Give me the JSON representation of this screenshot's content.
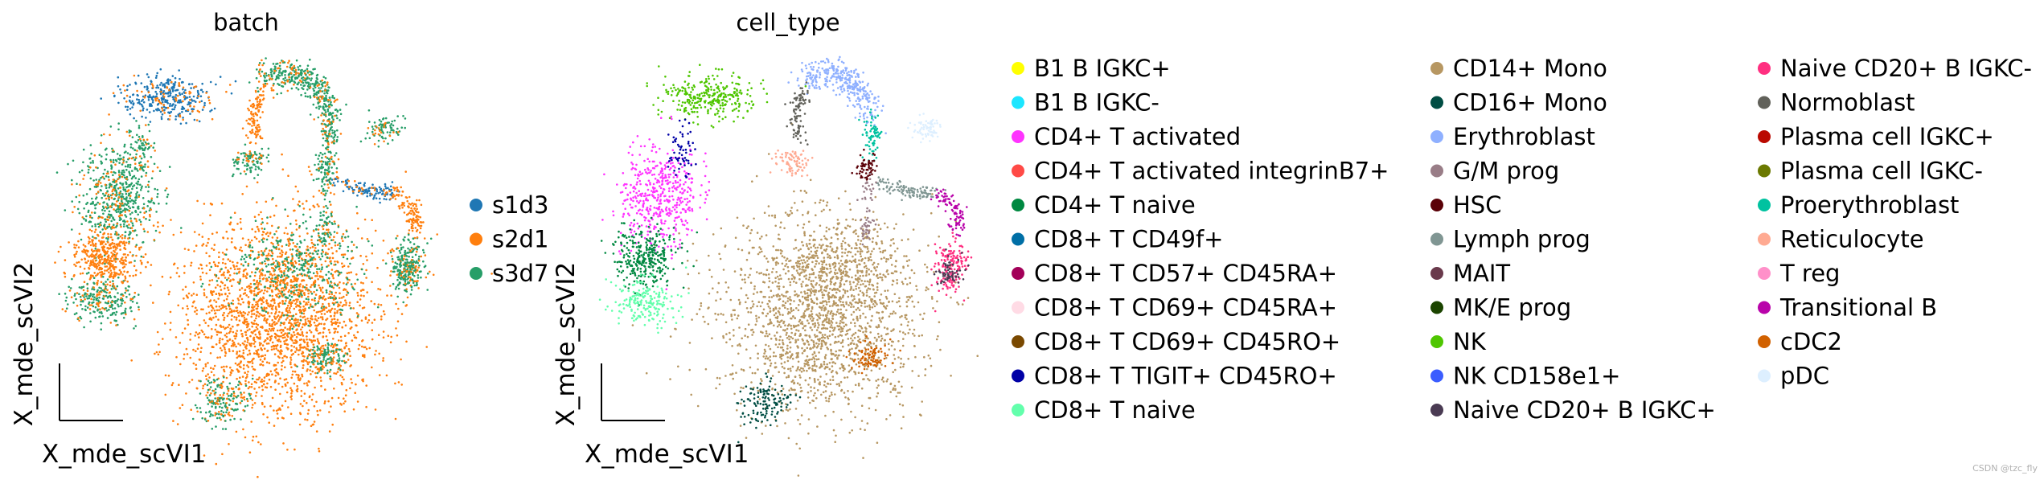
{
  "watermark": "CSDN @tzc_fly",
  "chart_data": [
    {
      "type": "scatter",
      "title": "batch",
      "xlabel": "X_mde_scVI1",
      "ylabel": "X_mde_scVI2",
      "grid": false,
      "legend_position": "right",
      "series": [
        {
          "name": "s1d3",
          "color": "#1f77b4"
        },
        {
          "name": "s2d1",
          "color": "#ff7f0e"
        },
        {
          "name": "s3d7",
          "color": "#279e68"
        }
      ]
    },
    {
      "type": "scatter",
      "title": "cell_type",
      "xlabel": "X_mde_scVI1",
      "ylabel": "X_mde_scVI2",
      "grid": false,
      "legend_position": "right",
      "series": [
        {
          "name": "B1 B IGKC+",
          "color": "#ffff00"
        },
        {
          "name": "B1 B IGKC-",
          "color": "#1ce6ff"
        },
        {
          "name": "CD4+ T activated",
          "color": "#ff34ff"
        },
        {
          "name": "CD4+ T activated integrinB7+",
          "color": "#ff4a46"
        },
        {
          "name": "CD4+ T naive",
          "color": "#008941"
        },
        {
          "name": "CD8+ T CD49f+",
          "color": "#006fa6"
        },
        {
          "name": "CD8+ T CD57+ CD45RA+",
          "color": "#a30059"
        },
        {
          "name": "CD8+ T CD69+ CD45RA+",
          "color": "#ffdbe5"
        },
        {
          "name": "CD8+ T CD69+ CD45RO+",
          "color": "#7a4900"
        },
        {
          "name": "CD8+ T TIGIT+ CD45RO+",
          "color": "#0000a6"
        },
        {
          "name": "CD8+ T naive",
          "color": "#63ffac"
        },
        {
          "name": "CD14+ Mono",
          "color": "#b79762"
        },
        {
          "name": "CD16+ Mono",
          "color": "#004d43"
        },
        {
          "name": "Erythroblast",
          "color": "#8fb0ff"
        },
        {
          "name": "G/M prog",
          "color": "#997d87"
        },
        {
          "name": "HSC",
          "color": "#5a0007"
        },
        {
          "name": "Lymph prog",
          "color": "#809693"
        },
        {
          "name": "MAIT",
          "color": "#6a3a4c"
        },
        {
          "name": "MK/E prog",
          "color": "#1b4400"
        },
        {
          "name": "NK",
          "color": "#4fc601"
        },
        {
          "name": "NK CD158e1+",
          "color": "#3b5dff"
        },
        {
          "name": "Naive CD20+ B IGKC+",
          "color": "#4a3b53"
        },
        {
          "name": "Naive CD20+ B IGKC-",
          "color": "#ff2f80"
        },
        {
          "name": "Normoblast",
          "color": "#61615a"
        },
        {
          "name": "Plasma cell IGKC+",
          "color": "#ba0900"
        },
        {
          "name": "Plasma cell IGKC-",
          "color": "#6b7900"
        },
        {
          "name": "Proerythroblast",
          "color": "#00c2a0"
        },
        {
          "name": "Reticulocyte",
          "color": "#ffaa92"
        },
        {
          "name": "T reg",
          "color": "#ff90c9"
        },
        {
          "name": "Transitional B",
          "color": "#b903aa"
        },
        {
          "name": "cDC2",
          "color": "#d16100"
        },
        {
          "name": "pDC",
          "color": "#ddefff"
        }
      ]
    }
  ]
}
